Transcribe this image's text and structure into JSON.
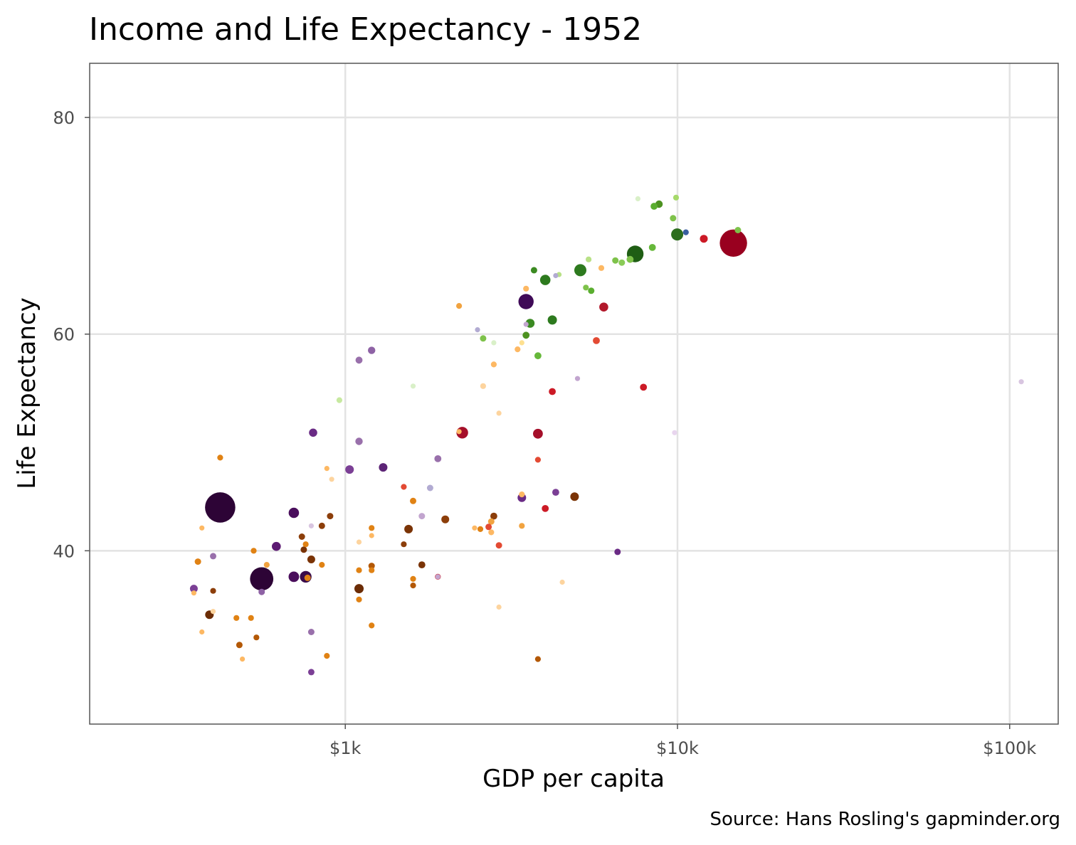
{
  "chart_data": {
    "type": "scatter",
    "title": "Income and Life Expectancy - 1952",
    "xlabel": "GDP per capita",
    "ylabel": "Life Expectancy",
    "caption": "Source: Hans Rosling's gapminder.org",
    "x_scale": "log10",
    "xlim": [
      170,
      140000
    ],
    "ylim": [
      24,
      85
    ],
    "x_ticks": [
      {
        "value": 1000,
        "label": "$1k"
      },
      {
        "value": 10000,
        "label": "$10k"
      },
      {
        "value": 100000,
        "label": "$100k"
      }
    ],
    "y_ticks": [
      {
        "value": 40,
        "label": "40"
      },
      {
        "value": 60,
        "label": "60"
      },
      {
        "value": 80,
        "label": "80"
      }
    ],
    "grid": true,
    "legend": "none",
    "size_encoding": "population",
    "color_encoding": "country",
    "points": [
      {
        "gdp": 14734,
        "life": 68.4,
        "pop": 158,
        "color": "#99001f"
      },
      {
        "gdp": 12000,
        "life": 68.8,
        "pop": 6,
        "color": "#cc1a26"
      },
      {
        "gdp": 9980,
        "life": 69.2,
        "pop": 22,
        "color": "#2d6e1e"
      },
      {
        "gdp": 10600,
        "life": 69.4,
        "pop": 2,
        "color": "#3a5fa0"
      },
      {
        "gdp": 7460,
        "life": 67.4,
        "pop": 50,
        "color": "#1f5e14"
      },
      {
        "gdp": 15200,
        "life": 69.6,
        "pop": 3,
        "color": "#7ec24a"
      },
      {
        "gdp": 9900,
        "life": 72.6,
        "pop": 2,
        "color": "#a6d96a"
      },
      {
        "gdp": 8800,
        "life": 72.0,
        "pop": 5,
        "color": "#4d9221"
      },
      {
        "gdp": 8500,
        "life": 71.8,
        "pop": 4,
        "color": "#5aae2f"
      },
      {
        "gdp": 9700,
        "life": 70.7,
        "pop": 3,
        "color": "#7ec24a"
      },
      {
        "gdp": 7600,
        "life": 72.5,
        "pop": 1,
        "color": "#d9f0c8"
      },
      {
        "gdp": 8400,
        "life": 68.0,
        "pop": 4,
        "color": "#66b83a"
      },
      {
        "gdp": 7200,
        "life": 66.9,
        "pop": 4,
        "color": "#7ec24a"
      },
      {
        "gdp": 6800,
        "life": 66.6,
        "pop": 3,
        "color": "#8acb57"
      },
      {
        "gdp": 6500,
        "life": 66.8,
        "pop": 3,
        "color": "#7ec24a"
      },
      {
        "gdp": 5900,
        "life": 66.1,
        "pop": 2,
        "color": "#fdb863"
      },
      {
        "gdp": 5400,
        "life": 66.9,
        "pop": 2,
        "color": "#b8e186"
      },
      {
        "gdp": 5100,
        "life": 65.9,
        "pop": 22,
        "color": "#2d7a1e"
      },
      {
        "gdp": 5500,
        "life": 64.0,
        "pop": 3,
        "color": "#5aae2f"
      },
      {
        "gdp": 5300,
        "life": 64.3,
        "pop": 2,
        "color": "#7ec24a"
      },
      {
        "gdp": 4400,
        "life": 65.5,
        "pop": 1,
        "color": "#b8e186"
      },
      {
        "gdp": 4300,
        "life": 65.4,
        "pop": 1,
        "color": "#b2abd2"
      },
      {
        "gdp": 4000,
        "life": 65.0,
        "pop": 14,
        "color": "#2d7a1e"
      },
      {
        "gdp": 3700,
        "life": 65.9,
        "pop": 3,
        "color": "#3b8a22"
      },
      {
        "gdp": 3500,
        "life": 64.2,
        "pop": 2,
        "color": "#fdb863"
      },
      {
        "gdp": 4200,
        "life": 61.3,
        "pop": 10,
        "color": "#2d7a1e"
      },
      {
        "gdp": 3500,
        "life": 63.0,
        "pop": 40,
        "color": "#3f0a57"
      },
      {
        "gdp": 3600,
        "life": 61.0,
        "pop": 9,
        "color": "#3b8a22"
      },
      {
        "gdp": 3500,
        "life": 60.9,
        "pop": 1,
        "color": "#c2a5cf"
      },
      {
        "gdp": 3500,
        "life": 59.9,
        "pop": 4,
        "color": "#4d9221"
      },
      {
        "gdp": 3300,
        "life": 58.6,
        "pop": 2,
        "color": "#fdb863"
      },
      {
        "gdp": 3400,
        "life": 59.2,
        "pop": 1,
        "color": "#fee090"
      },
      {
        "gdp": 3800,
        "life": 58.0,
        "pop": 4,
        "color": "#66b83a"
      },
      {
        "gdp": 6000,
        "life": 62.5,
        "pop": 9,
        "color": "#b2182b"
      },
      {
        "gdp": 5700,
        "life": 59.4,
        "pop": 4,
        "color": "#e34a33"
      },
      {
        "gdp": 2600,
        "life": 59.6,
        "pop": 3,
        "color": "#7ec24a"
      },
      {
        "gdp": 2800,
        "life": 59.2,
        "pop": 1,
        "color": "#d9f0c8"
      },
      {
        "gdp": 2500,
        "life": 60.4,
        "pop": 1,
        "color": "#b2abd2"
      },
      {
        "gdp": 2200,
        "life": 62.6,
        "pop": 2,
        "color": "#f1a340"
      },
      {
        "gdp": 2800,
        "life": 57.2,
        "pop": 2,
        "color": "#fdb863"
      },
      {
        "gdp": 2600,
        "life": 55.2,
        "pop": 2,
        "color": "#fdd49e"
      },
      {
        "gdp": 2900,
        "life": 52.7,
        "pop": 1,
        "color": "#fdd49e"
      },
      {
        "gdp": 1600,
        "life": 55.2,
        "pop": 1,
        "color": "#d9f0c8"
      },
      {
        "gdp": 960,
        "life": 53.9,
        "pop": 2,
        "color": "#c7e9a0"
      },
      {
        "gdp": 4200,
        "life": 54.7,
        "pop": 4,
        "color": "#cc1a26"
      },
      {
        "gdp": 5000,
        "life": 55.9,
        "pop": 1,
        "color": "#c2a5cf"
      },
      {
        "gdp": 7900,
        "life": 55.1,
        "pop": 4,
        "color": "#cc1a26"
      },
      {
        "gdp": 9800,
        "life": 50.9,
        "pop": 1,
        "color": "#e8d5ee"
      },
      {
        "gdp": 108382,
        "life": 55.6,
        "pop": 1,
        "color": "#d8c5e0"
      },
      {
        "gdp": 1100,
        "life": 57.6,
        "pop": 4,
        "color": "#9970ab"
      },
      {
        "gdp": 1200,
        "life": 58.5,
        "pop": 5,
        "color": "#8e62a5"
      },
      {
        "gdp": 2250,
        "life": 50.9,
        "pop": 20,
        "color": "#a50f2a"
      },
      {
        "gdp": 2200,
        "life": 51.0,
        "pop": 1,
        "color": "#fdb863"
      },
      {
        "gdp": 3800,
        "life": 50.8,
        "pop": 12,
        "color": "#a50f2a"
      },
      {
        "gdp": 3800,
        "life": 48.4,
        "pop": 2,
        "color": "#e34a33"
      },
      {
        "gdp": 1100,
        "life": 50.1,
        "pop": 5,
        "color": "#9970ab"
      },
      {
        "gdp": 1900,
        "life": 48.5,
        "pop": 4,
        "color": "#9970ab"
      },
      {
        "gdp": 1030,
        "life": 47.5,
        "pop": 8,
        "color": "#7b3f95"
      },
      {
        "gdp": 1300,
        "life": 47.7,
        "pop": 8,
        "color": "#5c2476"
      },
      {
        "gdp": 800,
        "life": 50.9,
        "pop": 7,
        "color": "#6a2b85"
      },
      {
        "gdp": 880,
        "life": 47.6,
        "pop": 1,
        "color": "#fdb863"
      },
      {
        "gdp": 910,
        "life": 46.6,
        "pop": 1,
        "color": "#fdd49e"
      },
      {
        "gdp": 420,
        "life": 48.6,
        "pop": 2,
        "color": "#e08214"
      },
      {
        "gdp": 1500,
        "life": 45.9,
        "pop": 2,
        "color": "#e34a33"
      },
      {
        "gdp": 1800,
        "life": 45.8,
        "pop": 3,
        "color": "#b2abd2"
      },
      {
        "gdp": 1600,
        "life": 44.6,
        "pop": 3,
        "color": "#e08214"
      },
      {
        "gdp": 1700,
        "life": 43.2,
        "pop": 3,
        "color": "#c2a5cf"
      },
      {
        "gdp": 2000,
        "life": 42.9,
        "pop": 6,
        "color": "#8c3e0a"
      },
      {
        "gdp": 3400,
        "life": 44.9,
        "pop": 8,
        "color": "#6a2b85"
      },
      {
        "gdp": 3400,
        "life": 45.2,
        "pop": 2,
        "color": "#fdb863"
      },
      {
        "gdp": 4300,
        "life": 45.4,
        "pop": 4,
        "color": "#7b3f95"
      },
      {
        "gdp": 4900,
        "life": 45.0,
        "pop": 8,
        "color": "#7a3305"
      },
      {
        "gdp": 4000,
        "life": 43.9,
        "pop": 4,
        "color": "#cc1a26"
      },
      {
        "gdp": 2800,
        "life": 43.2,
        "pop": 4,
        "color": "#8c3e0a"
      },
      {
        "gdp": 2750,
        "life": 42.7,
        "pop": 3,
        "color": "#f1a340"
      },
      {
        "gdp": 2700,
        "life": 42.2,
        "pop": 3,
        "color": "#e34a33"
      },
      {
        "gdp": 2750,
        "life": 41.7,
        "pop": 2,
        "color": "#fdb863"
      },
      {
        "gdp": 2550,
        "life": 42.0,
        "pop": 2,
        "color": "#e08214"
      },
      {
        "gdp": 2450,
        "life": 42.1,
        "pop": 1,
        "color": "#fdb863"
      },
      {
        "gdp": 3400,
        "life": 42.3,
        "pop": 2,
        "color": "#f1a340"
      },
      {
        "gdp": 2900,
        "life": 40.5,
        "pop": 3,
        "color": "#e34a33"
      },
      {
        "gdp": 1550,
        "life": 42.0,
        "pop": 8,
        "color": "#7a3305"
      },
      {
        "gdp": 1200,
        "life": 42.1,
        "pop": 2,
        "color": "#e08214"
      },
      {
        "gdp": 1200,
        "life": 41.4,
        "pop": 1,
        "color": "#fdb863"
      },
      {
        "gdp": 1100,
        "life": 40.8,
        "pop": 1,
        "color": "#fdd49e"
      },
      {
        "gdp": 1500,
        "life": 40.6,
        "pop": 2,
        "color": "#8c3e0a"
      },
      {
        "gdp": 1700,
        "life": 38.7,
        "pop": 4,
        "color": "#7a3305"
      },
      {
        "gdp": 1200,
        "life": 38.6,
        "pop": 3,
        "color": "#b35806"
      },
      {
        "gdp": 1200,
        "life": 38.2,
        "pop": 2,
        "color": "#e08214"
      },
      {
        "gdp": 1100,
        "life": 38.2,
        "pop": 2,
        "color": "#e08214"
      },
      {
        "gdp": 1600,
        "life": 37.4,
        "pop": 2,
        "color": "#e08214"
      },
      {
        "gdp": 1600,
        "life": 36.8,
        "pop": 2,
        "color": "#b35806"
      },
      {
        "gdp": 1100,
        "life": 36.5,
        "pop": 10,
        "color": "#6b2c05"
      },
      {
        "gdp": 1100,
        "life": 35.5,
        "pop": 2,
        "color": "#e08214"
      },
      {
        "gdp": 1200,
        "life": 33.1,
        "pop": 2,
        "color": "#e08214"
      },
      {
        "gdp": 1900,
        "life": 37.6,
        "pop": 2,
        "color": "#cc1a26"
      },
      {
        "gdp": 1900,
        "life": 37.6,
        "pop": 1,
        "color": "#c2a5cf"
      },
      {
        "gdp": 4500,
        "life": 37.1,
        "pop": 1,
        "color": "#fdd49e"
      },
      {
        "gdp": 6600,
        "life": 39.9,
        "pop": 3,
        "color": "#6a2b85"
      },
      {
        "gdp": 2900,
        "life": 34.8,
        "pop": 1,
        "color": "#fdd49e"
      },
      {
        "gdp": 3800,
        "life": 30.0,
        "pop": 2,
        "color": "#b35806"
      },
      {
        "gdp": 900,
        "life": 43.2,
        "pop": 3,
        "color": "#8c3e0a"
      },
      {
        "gdp": 850,
        "life": 42.3,
        "pop": 3,
        "color": "#8c3e0a"
      },
      {
        "gdp": 790,
        "life": 42.3,
        "pop": 1,
        "color": "#d8c5e0"
      },
      {
        "gdp": 740,
        "life": 41.3,
        "pop": 3,
        "color": "#8c3e0a"
      },
      {
        "gdp": 760,
        "life": 40.6,
        "pop": 2,
        "color": "#e08214"
      },
      {
        "gdp": 750,
        "life": 40.1,
        "pop": 3,
        "color": "#7a3305"
      },
      {
        "gdp": 790,
        "life": 39.2,
        "pop": 6,
        "color": "#7a3305"
      },
      {
        "gdp": 850,
        "life": 38.7,
        "pop": 2,
        "color": "#e08214"
      },
      {
        "gdp": 770,
        "life": 37.5,
        "pop": 3,
        "color": "#e08214"
      },
      {
        "gdp": 700,
        "life": 43.5,
        "pop": 14,
        "color": "#4a0e5c"
      },
      {
        "gdp": 620,
        "life": 40.4,
        "pop": 9,
        "color": "#5c1a72"
      },
      {
        "gdp": 700,
        "life": 37.6,
        "pop": 15,
        "color": "#4a0e5c"
      },
      {
        "gdp": 760,
        "life": 37.6,
        "pop": 20,
        "color": "#3a0c4a"
      },
      {
        "gdp": 560,
        "life": 37.4,
        "pop": 110,
        "color": "#2d0436"
      },
      {
        "gdp": 420,
        "life": 44.0,
        "pop": 200,
        "color": "#2d0436"
      },
      {
        "gdp": 560,
        "life": 36.2,
        "pop": 3,
        "color": "#8e62a5"
      },
      {
        "gdp": 580,
        "life": 38.7,
        "pop": 2,
        "color": "#f1a340"
      },
      {
        "gdp": 530,
        "life": 40.0,
        "pop": 2,
        "color": "#e08214"
      },
      {
        "gdp": 400,
        "life": 39.5,
        "pop": 3,
        "color": "#9970ab"
      },
      {
        "gdp": 360,
        "life": 39.0,
        "pop": 3,
        "color": "#e08214"
      },
      {
        "gdp": 350,
        "life": 36.5,
        "pop": 6,
        "color": "#7b3f95"
      },
      {
        "gdp": 350,
        "life": 36.1,
        "pop": 1,
        "color": "#fdb863"
      },
      {
        "gdp": 400,
        "life": 36.3,
        "pop": 2,
        "color": "#8c3e0a"
      },
      {
        "gdp": 400,
        "life": 34.4,
        "pop": 1,
        "color": "#fdd49e"
      },
      {
        "gdp": 390,
        "life": 34.1,
        "pop": 8,
        "color": "#6b2c05"
      },
      {
        "gdp": 470,
        "life": 33.8,
        "pop": 2,
        "color": "#e08214"
      },
      {
        "gdp": 520,
        "life": 33.8,
        "pop": 2,
        "color": "#e08214"
      },
      {
        "gdp": 540,
        "life": 32.0,
        "pop": 2,
        "color": "#b35806"
      },
      {
        "gdp": 480,
        "life": 31.3,
        "pop": 3,
        "color": "#b35806"
      },
      {
        "gdp": 490,
        "life": 30.0,
        "pop": 1,
        "color": "#fdb863"
      },
      {
        "gdp": 370,
        "life": 32.5,
        "pop": 1,
        "color": "#fdb863"
      },
      {
        "gdp": 370,
        "life": 42.1,
        "pop": 1,
        "color": "#fdb863"
      },
      {
        "gdp": 790,
        "life": 32.5,
        "pop": 3,
        "color": "#9970ab"
      },
      {
        "gdp": 880,
        "life": 30.3,
        "pop": 2,
        "color": "#e08214"
      },
      {
        "gdp": 790,
        "life": 28.8,
        "pop": 3,
        "color": "#7b3f95"
      }
    ]
  }
}
